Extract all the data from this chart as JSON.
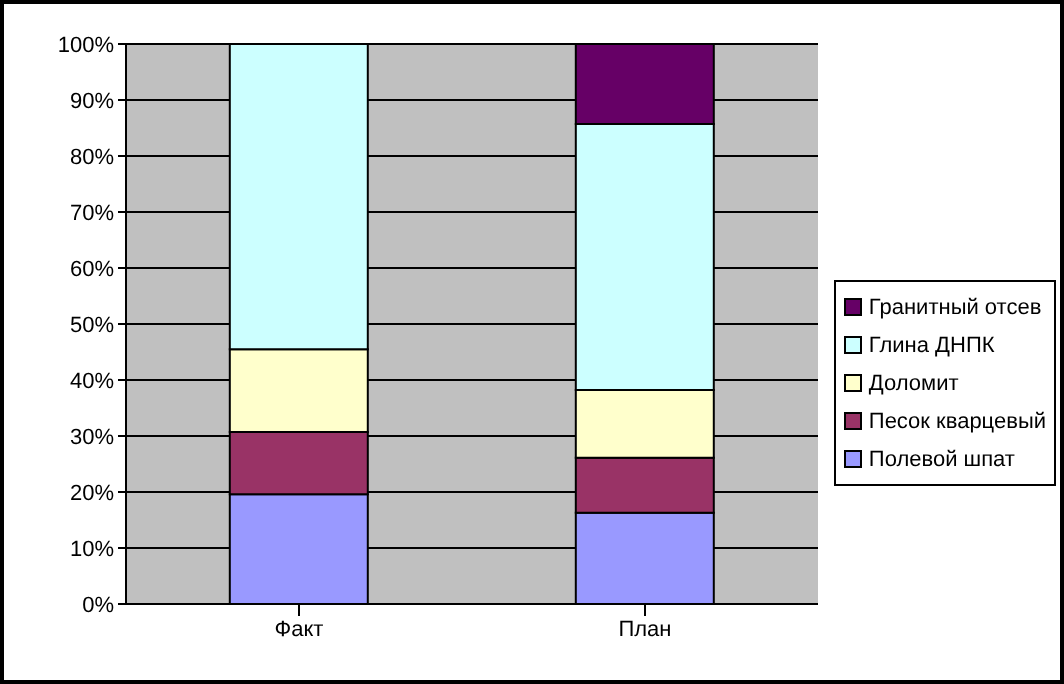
{
  "chart_data": {
    "type": "bar",
    "stacked": true,
    "categories": [
      "Факт",
      "План"
    ],
    "series": [
      {
        "name": "Полевой шпат",
        "color": "#9999ff",
        "values": [
          19.6,
          16.3
        ]
      },
      {
        "name": "Песок кварцевый",
        "color": "#993366",
        "values": [
          11.1,
          9.8
        ]
      },
      {
        "name": "Доломит",
        "color": "#ffffcc",
        "values": [
          14.8,
          12.1
        ]
      },
      {
        "name": "Глина ДНПК",
        "color": "#ccffff",
        "values": [
          54.5,
          47.5
        ]
      },
      {
        "name": "Гранитный отсев",
        "color": "#660066",
        "values": [
          0,
          14.3
        ]
      }
    ],
    "ylim": [
      0,
      100
    ],
    "yticks": [
      {
        "value": 0,
        "label": "0%"
      },
      {
        "value": 10,
        "label": "10%"
      },
      {
        "value": 20,
        "label": "20%"
      },
      {
        "value": 30,
        "label": "30%"
      },
      {
        "value": 40,
        "label": "40%"
      },
      {
        "value": 50,
        "label": "50%"
      },
      {
        "value": 60,
        "label": "60%"
      },
      {
        "value": 70,
        "label": "70%"
      },
      {
        "value": 80,
        "label": "80%"
      },
      {
        "value": 90,
        "label": "90%"
      },
      {
        "value": 100,
        "label": "100%"
      }
    ],
    "grid": "y",
    "legend": "right"
  }
}
